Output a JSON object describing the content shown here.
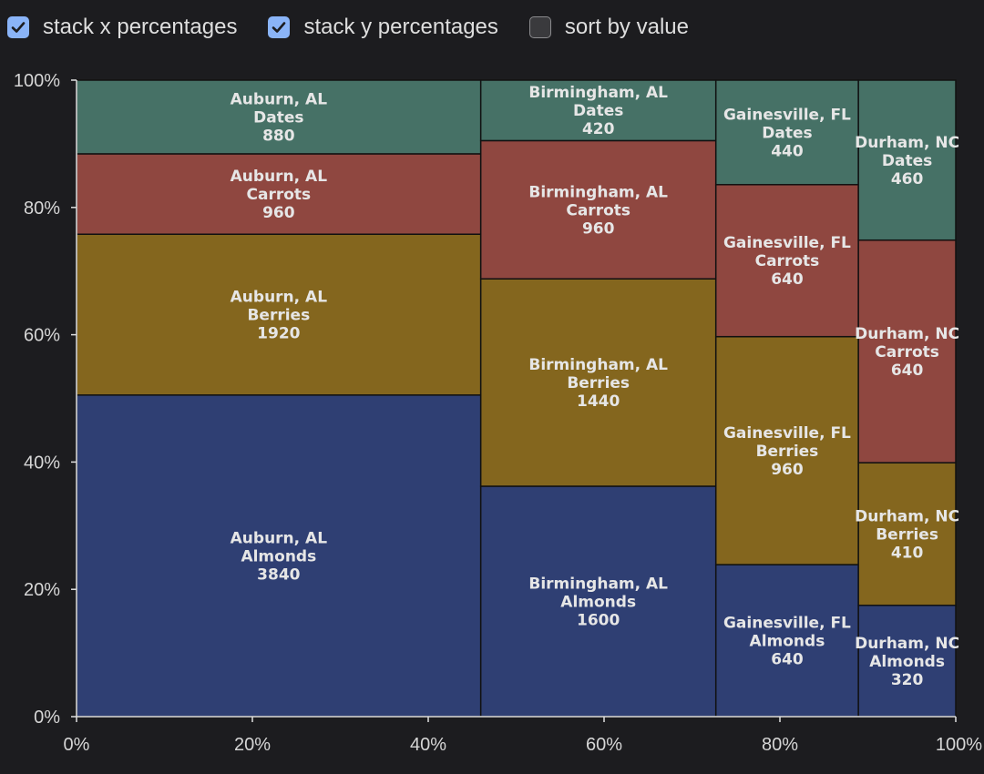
{
  "controls": [
    {
      "label": "stack x percentages",
      "checked": true
    },
    {
      "label": "stack y percentages",
      "checked": true
    },
    {
      "label": "sort by value",
      "checked": false
    }
  ],
  "colors": {
    "Almonds": "#2f3f73",
    "Berries": "#84661e",
    "Carrots": "#8f4740",
    "Dates": "#467166",
    "background": "#1c1c1f",
    "checkbox_on": "#8ab4f8"
  },
  "chart_data": {
    "type": "mosaic",
    "title": "",
    "xlabel": "",
    "ylabel": "",
    "x_ticks": [
      "0%",
      "20%",
      "40%",
      "60%",
      "80%",
      "100%"
    ],
    "y_ticks": [
      "0%",
      "20%",
      "40%",
      "60%",
      "80%",
      "100%"
    ],
    "xlim": [
      0,
      100
    ],
    "ylim": [
      0,
      100
    ],
    "categories": [
      "Auburn, AL",
      "Birmingham, AL",
      "Gainesville, FL",
      "Durham, NC"
    ],
    "series": [
      {
        "name": "Almonds",
        "values": [
          3840,
          1600,
          640,
          320
        ]
      },
      {
        "name": "Berries",
        "values": [
          1920,
          1440,
          960,
          410
        ]
      },
      {
        "name": "Carrots",
        "values": [
          960,
          960,
          640,
          640
        ]
      },
      {
        "name": "Dates",
        "values": [
          880,
          420,
          440,
          460
        ]
      }
    ]
  }
}
